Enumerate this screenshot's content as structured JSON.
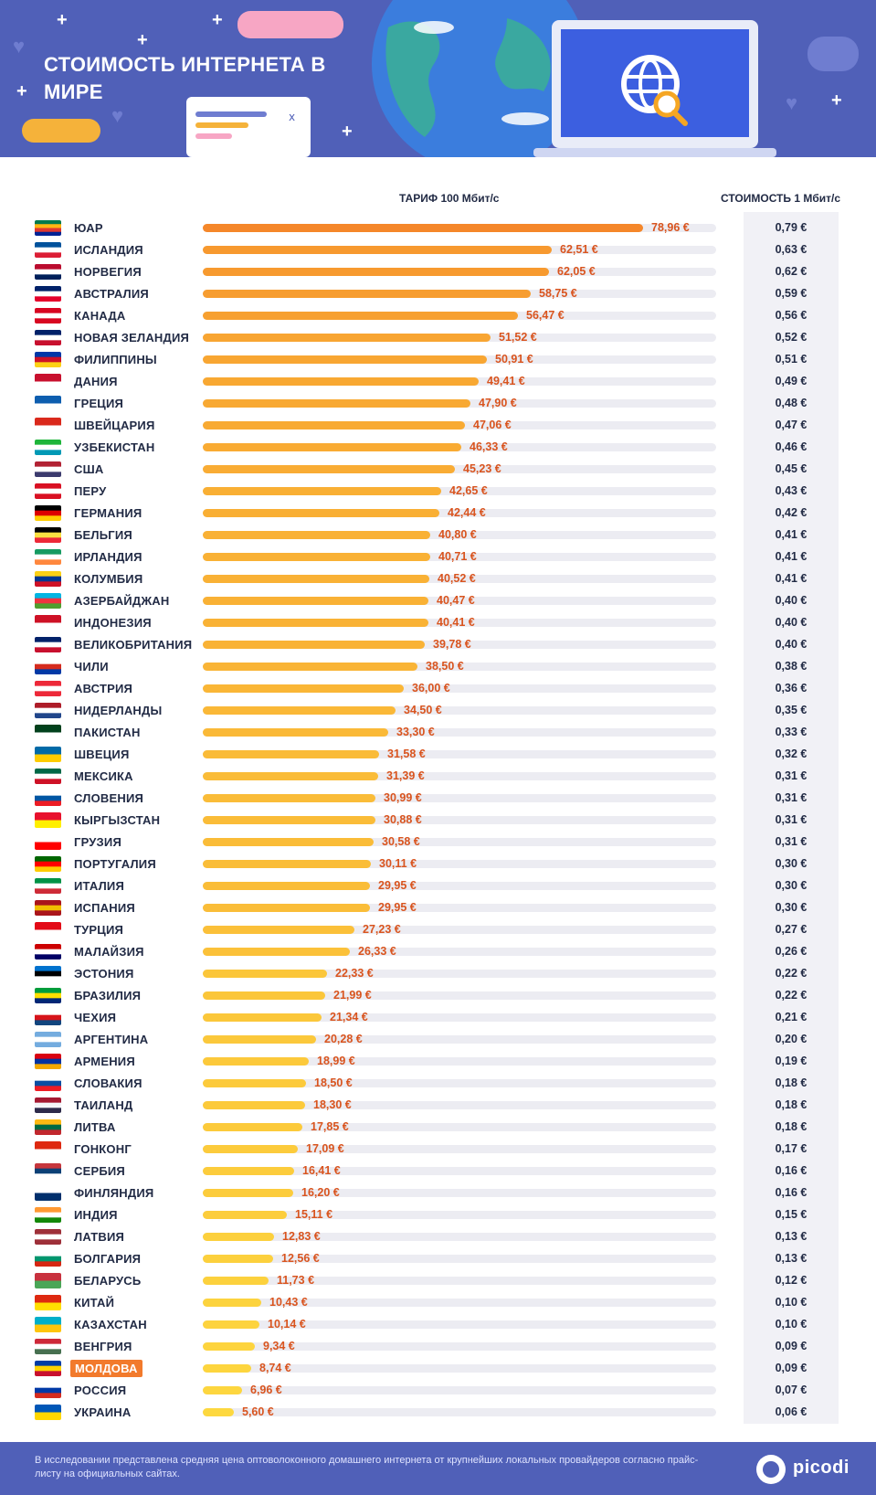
{
  "header": {
    "title": "СТОИМОСТЬ ИНТЕРНЕТА В МИРЕ"
  },
  "columns": {
    "tariff": "ТАРИФ 100 Мбит/с",
    "unit_cost": "СТОИМОСТЬ 1 Мбит/с"
  },
  "footer": {
    "note": "В исследовании представлена средняя цена оптоволоконного домашнего интернета от крупнейших локальных провайдеров согласно прайс-листу на официальных сайтах.",
    "brand": "picodi"
  },
  "colors": {
    "header_bg": "#5060b8",
    "bar_high": "#f5872a",
    "bar_low": "#fdd83f",
    "value_text": "#d9541e",
    "highlight": "#f27a2c"
  },
  "chart_data": {
    "type": "bar",
    "orientation": "horizontal",
    "xlim": [
      0,
      92
    ],
    "highlight": "МОЛДОВА",
    "categories": [
      "ЮАР",
      "ИСЛАНДИЯ",
      "НОРВЕГИЯ",
      "АВСТРАЛИЯ",
      "КАНАДА",
      "НОВАЯ ЗЕЛАНДИЯ",
      "ФИЛИППИНЫ",
      "ДАНИЯ",
      "ГРЕЦИЯ",
      "ШВЕЙЦАРИЯ",
      "УЗБЕКИСТАН",
      "США",
      "ПЕРУ",
      "ГЕРМАНИЯ",
      "БЕЛЬГИЯ",
      "ИРЛАНДИЯ",
      "КОЛУМБИЯ",
      "АЗЕРБАЙДЖАН",
      "ИНДОНЕЗИЯ",
      "ВЕЛИКОБРИТАНИЯ",
      "ЧИЛИ",
      "АВСТРИЯ",
      "НИДЕРЛАНДЫ",
      "ПАКИСТАН",
      "ШВЕЦИЯ",
      "МЕКСИКА",
      "СЛОВЕНИЯ",
      "КЫРГЫЗСТАН",
      "ГРУЗИЯ",
      "ПОРТУГАЛИЯ",
      "ИТАЛИЯ",
      "ИСПАНИЯ",
      "ТУРЦИЯ",
      "МАЛАЙЗИЯ",
      "ЭСТОНИЯ",
      "БРАЗИЛИЯ",
      "ЧЕХИЯ",
      "АРГЕНТИНА",
      "АРМЕНИЯ",
      "СЛОВАКИЯ",
      "ТАИЛАНД",
      "ЛИТВА",
      "ГОНКОНГ",
      "СЕРБИЯ",
      "ФИНЛЯНДИЯ",
      "ИНДИЯ",
      "ЛАТВИЯ",
      "БОЛГАРИЯ",
      "БЕЛАРУСЬ",
      "КИТАЙ",
      "КАЗАХСТАН",
      "ВЕНГРИЯ",
      "МОЛДОВА",
      "РОССИЯ",
      "УКРАИНА"
    ],
    "series": [
      {
        "name": "ТАРИФ 100 Мбит/с",
        "values": [
          78.96,
          62.51,
          62.05,
          58.75,
          56.47,
          51.52,
          50.91,
          49.41,
          47.9,
          47.06,
          46.33,
          45.23,
          42.65,
          42.44,
          40.8,
          40.71,
          40.52,
          40.47,
          40.41,
          39.78,
          38.5,
          36.0,
          34.5,
          33.3,
          31.58,
          31.39,
          30.99,
          30.88,
          30.58,
          30.11,
          29.95,
          29.95,
          27.23,
          26.33,
          22.33,
          21.99,
          21.34,
          20.28,
          18.99,
          18.5,
          18.3,
          17.85,
          17.09,
          16.41,
          16.2,
          15.11,
          12.83,
          12.56,
          11.73,
          10.43,
          10.14,
          9.34,
          8.74,
          6.96,
          5.6
        ],
        "labels": [
          "78,96 €",
          "62,51 €",
          "62,05 €",
          "58,75 €",
          "56,47 €",
          "51,52 €",
          "50,91 €",
          "49,41 €",
          "47,90 €",
          "47,06 €",
          "46,33 €",
          "45,23 €",
          "42,65 €",
          "42,44 €",
          "40,80 €",
          "40,71 €",
          "40,52 €",
          "40,47 €",
          "40,41 €",
          "39,78 €",
          "38,50 €",
          "36,00 €",
          "34,50 €",
          "33,30 €",
          "31,58 €",
          "31,39 €",
          "30,99 €",
          "30,88 €",
          "30,58 €",
          "30,11 €",
          "29,95 €",
          "29,95 €",
          "27,23 €",
          "26,33 €",
          "22,33 €",
          "21,99 €",
          "21,34 €",
          "20,28 €",
          "18,99 €",
          "18,50 €",
          "18,30 €",
          "17,85 €",
          "17,09 €",
          "16,41 €",
          "16,20 €",
          "15,11 €",
          "12,83 €",
          "12,56 €",
          "11,73 €",
          "10,43 €",
          "10,14 €",
          "9,34 €",
          "8,74 €",
          "6,96 €",
          "5,60 €"
        ]
      },
      {
        "name": "СТОИМОСТЬ 1 Мбит/с",
        "labels": [
          "0,79 €",
          "0,63 €",
          "0,62 €",
          "0,59 €",
          "0,56 €",
          "0,52 €",
          "0,51 €",
          "0,49 €",
          "0,48 €",
          "0,47 €",
          "0,46 €",
          "0,45 €",
          "0,43 €",
          "0,42 €",
          "0,41 €",
          "0,41 €",
          "0,41 €",
          "0,40 €",
          "0,40 €",
          "0,40 €",
          "0,38 €",
          "0,36 €",
          "0,35 €",
          "0,33 €",
          "0,32 €",
          "0,31 €",
          "0,31 €",
          "0,31 €",
          "0,31 €",
          "0,30 €",
          "0,30 €",
          "0,30 €",
          "0,27 €",
          "0,26 €",
          "0,22 €",
          "0,22 €",
          "0,21 €",
          "0,20 €",
          "0,19 €",
          "0,18 €",
          "0,18 €",
          "0,18 €",
          "0,17 €",
          "0,16 €",
          "0,16 €",
          "0,15 €",
          "0,13 €",
          "0,13 €",
          "0,12 €",
          "0,10 €",
          "0,10 €",
          "0,09 €",
          "0,09 €",
          "0,07 €",
          "0,06 €"
        ]
      }
    ],
    "flags": [
      [
        "#007a4d",
        "#ffb612",
        "#de3831",
        "#002395"
      ],
      [
        "#02529c",
        "#ffffff",
        "#dc1e35"
      ],
      [
        "#ba0c2f",
        "#ffffff",
        "#00205b"
      ],
      [
        "#012169",
        "#ffffff",
        "#e4002b"
      ],
      [
        "#d80621",
        "#ffffff",
        "#d80621"
      ],
      [
        "#012169",
        "#ffffff",
        "#c8102e"
      ],
      [
        "#0038a8",
        "#ce1126",
        "#fcd116"
      ],
      [
        "#c8102e",
        "#ffffff"
      ],
      [
        "#0d5eaf",
        "#ffffff"
      ],
      [
        "#da291c",
        "#ffffff"
      ],
      [
        "#1eb53a",
        "#ffffff",
        "#0099b5"
      ],
      [
        "#b22234",
        "#ffffff",
        "#3c3b6e"
      ],
      [
        "#d91023",
        "#ffffff",
        "#d91023"
      ],
      [
        "#000000",
        "#dd0000",
        "#ffce00"
      ],
      [
        "#000000",
        "#fae042",
        "#ed2939"
      ],
      [
        "#169b62",
        "#ffffff",
        "#ff883e"
      ],
      [
        "#fcd116",
        "#003893",
        "#ce1126"
      ],
      [
        "#00b5e2",
        "#ef3340",
        "#509e2f"
      ],
      [
        "#ce1126",
        "#ffffff"
      ],
      [
        "#012169",
        "#ffffff",
        "#c8102e"
      ],
      [
        "#ffffff",
        "#d52b1e",
        "#0039a6"
      ],
      [
        "#ed2939",
        "#ffffff",
        "#ed2939"
      ],
      [
        "#ae1c28",
        "#ffffff",
        "#21468b"
      ],
      [
        "#01411c",
        "#ffffff"
      ],
      [
        "#006aa7",
        "#fecc00"
      ],
      [
        "#006847",
        "#ffffff",
        "#ce1126"
      ],
      [
        "#ffffff",
        "#0056a3",
        "#ed1c24"
      ],
      [
        "#e8112d",
        "#ffef00"
      ],
      [
        "#ffffff",
        "#ff0000"
      ],
      [
        "#006600",
        "#ff0000",
        "#ffcc00"
      ],
      [
        "#009246",
        "#ffffff",
        "#ce2b37"
      ],
      [
        "#aa151b",
        "#f1bf00",
        "#aa151b"
      ],
      [
        "#e30a17",
        "#ffffff"
      ],
      [
        "#cc0001",
        "#ffffff",
        "#010066"
      ],
      [
        "#0072ce",
        "#000000",
        "#ffffff"
      ],
      [
        "#009c3b",
        "#ffdf00",
        "#002776"
      ],
      [
        "#ffffff",
        "#d7141a",
        "#11457e"
      ],
      [
        "#74acdf",
        "#ffffff",
        "#74acdf"
      ],
      [
        "#d90012",
        "#0033a0",
        "#f2a800"
      ],
      [
        "#ffffff",
        "#0b4ea2",
        "#ee1c25"
      ],
      [
        "#a51931",
        "#f4f5f8",
        "#2d2a4a"
      ],
      [
        "#fdb913",
        "#006a44",
        "#c1272d"
      ],
      [
        "#de2910",
        "#ffffff"
      ],
      [
        "#c6363c",
        "#0c4076",
        "#ffffff"
      ],
      [
        "#ffffff",
        "#002f6c"
      ],
      [
        "#ff9933",
        "#ffffff",
        "#138808"
      ],
      [
        "#9e3039",
        "#ffffff",
        "#9e3039"
      ],
      [
        "#ffffff",
        "#00966e",
        "#d62612"
      ],
      [
        "#c8313e",
        "#4aa657"
      ],
      [
        "#de2910",
        "#ffde00"
      ],
      [
        "#00afca",
        "#fec50c"
      ],
      [
        "#ce2939",
        "#ffffff",
        "#477050"
      ],
      [
        "#003da5",
        "#ffd200",
        "#c8102e"
      ],
      [
        "#ffffff",
        "#0039a6",
        "#d52b1e"
      ],
      [
        "#0057b7",
        "#ffd700"
      ]
    ]
  }
}
